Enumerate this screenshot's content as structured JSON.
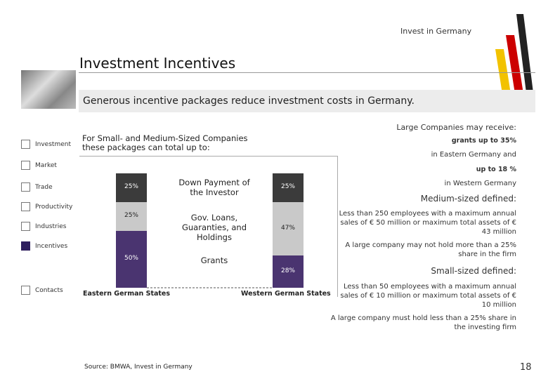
{
  "logo": "Invest in Germany",
  "title": "Investment Incentives",
  "subtitle": "Generous incentive packages reduce investment costs in Germany.",
  "nav": [
    "Investment",
    "Market",
    "Trade",
    "Productivity",
    "Industries",
    "Incentives",
    "Contacts"
  ],
  "chart_data": {
    "type": "bar",
    "stacked": true,
    "title": "For Small- and Medium-Sized Companies these packages can total up to:",
    "categories": [
      "Eastern German States",
      "Western German States"
    ],
    "series": [
      {
        "name": "Grants",
        "color": "#4a3470",
        "values": [
          50,
          28
        ],
        "value_labels": [
          "50%",
          "28%"
        ]
      },
      {
        "name": "Gov. Loans, Guaranties, and Holdings",
        "color": "#c9c9c9",
        "values": [
          25,
          47
        ],
        "value_labels": [
          "25%",
          "47%"
        ]
      },
      {
        "name": "Down Payment of the Investor",
        "color": "#3b3b3b",
        "values": [
          25,
          25
        ],
        "value_labels": [
          "25%",
          "25%"
        ]
      }
    ]
  },
  "right_panel": {
    "heading": "Large Companies may receive:",
    "grants_east": "grants up to 35%",
    "east_text": "in Eastern Germany and",
    "grants_west": "up to 18 %",
    "west_text": "in Western Germany",
    "medium_heading": "Medium-sized defined:",
    "medium_text": "Less than 250 employees with a maximum annual sales of € 50 million or maximum total assets of € 43 million",
    "medium_note": "A large company may not hold more than a 25% share in the firm",
    "small_heading": "Small-sized defined:",
    "small_text": "Less than 50 employees with a maximum annual sales of € 10 million or maximum total assets of € 10 million",
    "small_note": "A large company must hold less than a 25% share in the investing firm"
  },
  "source": "Source: BMWA, Invest in Germany",
  "page_number": "18"
}
